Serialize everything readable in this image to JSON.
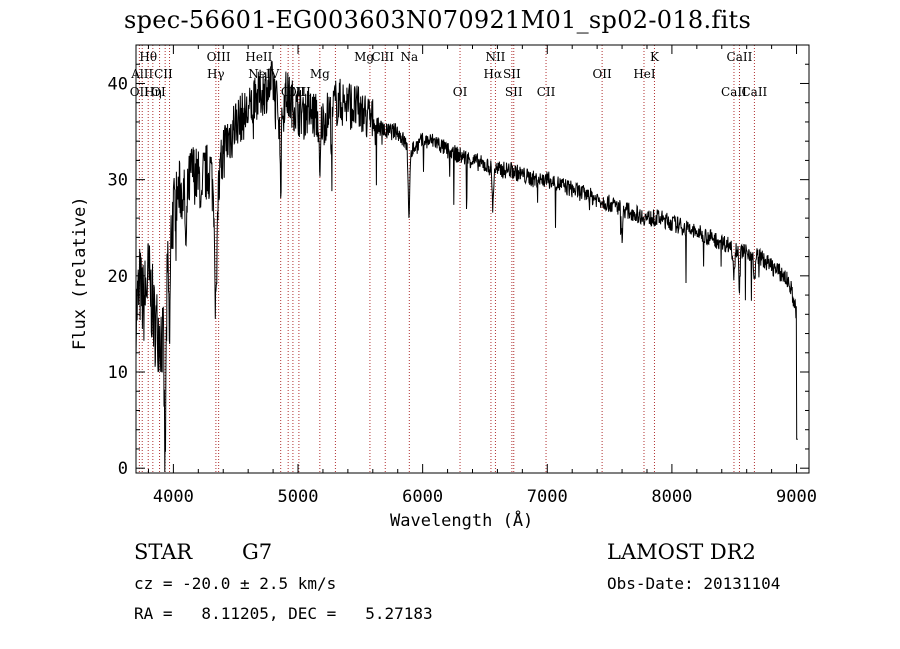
{
  "footer": {
    "object_class": "STAR",
    "subclass": "G7",
    "survey": "LAMOST DR2",
    "cz": "cz = -20.0 ± 2.5 km/s",
    "obs_date": "Obs-Date: 20131104",
    "coords": "RA =   8.11205, DEC =   5.27183"
  },
  "chart_data": {
    "type": "line",
    "title": "spec-56601-EG003603N070921M01_sp02-018.fits",
    "xlabel": "Wavelength (Å)",
    "ylabel": "Flux (relative)",
    "xlim": [
      3700,
      9100
    ],
    "ylim": [
      -0.5,
      44
    ],
    "x_ticks": [
      4000,
      5000,
      6000,
      7000,
      8000,
      9000
    ],
    "y_ticks": [
      0,
      10,
      20,
      30,
      40
    ],
    "grid": false,
    "line_color": "#000000",
    "marker_color": "#b03030",
    "spectrum_knots": [
      [
        3700,
        16
      ],
      [
        3730,
        19
      ],
      [
        3760,
        17
      ],
      [
        3800,
        20
      ],
      [
        3850,
        15
      ],
      [
        3900,
        14
      ],
      [
        3930,
        12
      ],
      [
        3960,
        22
      ],
      [
        4000,
        27
      ],
      [
        4050,
        29
      ],
      [
        4100,
        28
      ],
      [
        4150,
        31
      ],
      [
        4200,
        30
      ],
      [
        4300,
        31
      ],
      [
        4340,
        26
      ],
      [
        4400,
        33
      ],
      [
        4500,
        36
      ],
      [
        4600,
        37
      ],
      [
        4700,
        39
      ],
      [
        4800,
        40
      ],
      [
        4860,
        36
      ],
      [
        4900,
        39
      ],
      [
        5000,
        37
      ],
      [
        5100,
        37
      ],
      [
        5200,
        36
      ],
      [
        5300,
        38
      ],
      [
        5400,
        38
      ],
      [
        5500,
        37
      ],
      [
        5600,
        36
      ],
      [
        5700,
        35
      ],
      [
        5800,
        35
      ],
      [
        5900,
        33
      ],
      [
        6000,
        34
      ],
      [
        6100,
        34
      ],
      [
        6200,
        33
      ],
      [
        6300,
        32.5
      ],
      [
        6400,
        32
      ],
      [
        6500,
        31.5
      ],
      [
        6600,
        31
      ],
      [
        6700,
        31
      ],
      [
        6800,
        30.5
      ],
      [
        6900,
        30
      ],
      [
        7000,
        30
      ],
      [
        7100,
        29.5
      ],
      [
        7200,
        29
      ],
      [
        7300,
        28.5
      ],
      [
        7400,
        28
      ],
      [
        7500,
        27.5
      ],
      [
        7600,
        27
      ],
      [
        7700,
        26.5
      ],
      [
        7800,
        26
      ],
      [
        7900,
        26
      ],
      [
        8000,
        25.5
      ],
      [
        8100,
        25
      ],
      [
        8200,
        24.5
      ],
      [
        8300,
        24
      ],
      [
        8400,
        23.5
      ],
      [
        8500,
        23
      ],
      [
        8600,
        22.5
      ],
      [
        8700,
        22
      ],
      [
        8800,
        21
      ],
      [
        8900,
        20
      ],
      [
        8950,
        19
      ],
      [
        9000,
        16
      ],
      [
        9010,
        5
      ]
    ],
    "absorption_features": [
      [
        3934,
        13
      ],
      [
        3969,
        10
      ],
      [
        4102,
        6
      ],
      [
        4227,
        4
      ],
      [
        4340,
        10
      ],
      [
        4861,
        6
      ],
      [
        5175,
        7
      ],
      [
        5270,
        3
      ],
      [
        5890,
        8
      ],
      [
        6563,
        4
      ],
      [
        7600,
        3
      ],
      [
        8498,
        3
      ],
      [
        8542,
        4
      ],
      [
        8662,
        3
      ]
    ],
    "line_markers": [
      {
        "label": "Hθ",
        "x": 3798,
        "row": 0
      },
      {
        "label": "AlII",
        "x": 3750,
        "row": 1
      },
      {
        "label": "OII",
        "x": 3727,
        "row": 2
      },
      {
        "label": "Hη",
        "x": 3835,
        "row": 2
      },
      {
        "label": "OI",
        "x": 3880,
        "row": 2
      },
      {
        "label": "CII",
        "x": 3920,
        "row": 1
      },
      {
        "label": "OIII",
        "x": 4363,
        "row": 0
      },
      {
        "label": "Hγ",
        "x": 4340,
        "row": 1
      },
      {
        "label": "HeII",
        "x": 4686,
        "row": 0
      },
      {
        "label": "NeIV",
        "x": 4725,
        "row": 1
      },
      {
        "label": "OIII",
        "x": 4959,
        "row": 2
      },
      {
        "label": "OIII",
        "x": 5007,
        "row": 2
      },
      {
        "label": "Mg",
        "x": 5175,
        "row": 1
      },
      {
        "label": "Mg",
        "x": 5530,
        "row": 0
      },
      {
        "label": "ClII",
        "x": 5680,
        "row": 0
      },
      {
        "label": "Na",
        "x": 5893,
        "row": 0
      },
      {
        "label": "OI",
        "x": 6300,
        "row": 2
      },
      {
        "label": "NII",
        "x": 6584,
        "row": 0
      },
      {
        "label": "Hα",
        "x": 6563,
        "row": 1
      },
      {
        "label": "SII",
        "x": 6716,
        "row": 1
      },
      {
        "label": "SII",
        "x": 6731,
        "row": 2
      },
      {
        "label": "CII",
        "x": 6990,
        "row": 2
      },
      {
        "label": "OII",
        "x": 7440,
        "row": 1
      },
      {
        "label": "K",
        "x": 7860,
        "row": 0
      },
      {
        "label": "HeI",
        "x": 7780,
        "row": 1
      },
      {
        "label": "CaII",
        "x": 8542,
        "row": 0
      },
      {
        "label": "CaII",
        "x": 8498,
        "row": 2
      },
      {
        "label": "CaII",
        "x": 8662,
        "row": 2
      }
    ],
    "marker_lines": [
      3727,
      3750,
      3798,
      3835,
      3889,
      3934,
      3969,
      4341,
      4363,
      4861,
      4921,
      4959,
      5007,
      5175,
      5300,
      5577,
      5700,
      5893,
      6300,
      6548,
      6584,
      6716,
      6731,
      6990,
      7440,
      7776,
      7860,
      8498,
      8542,
      8662
    ]
  }
}
